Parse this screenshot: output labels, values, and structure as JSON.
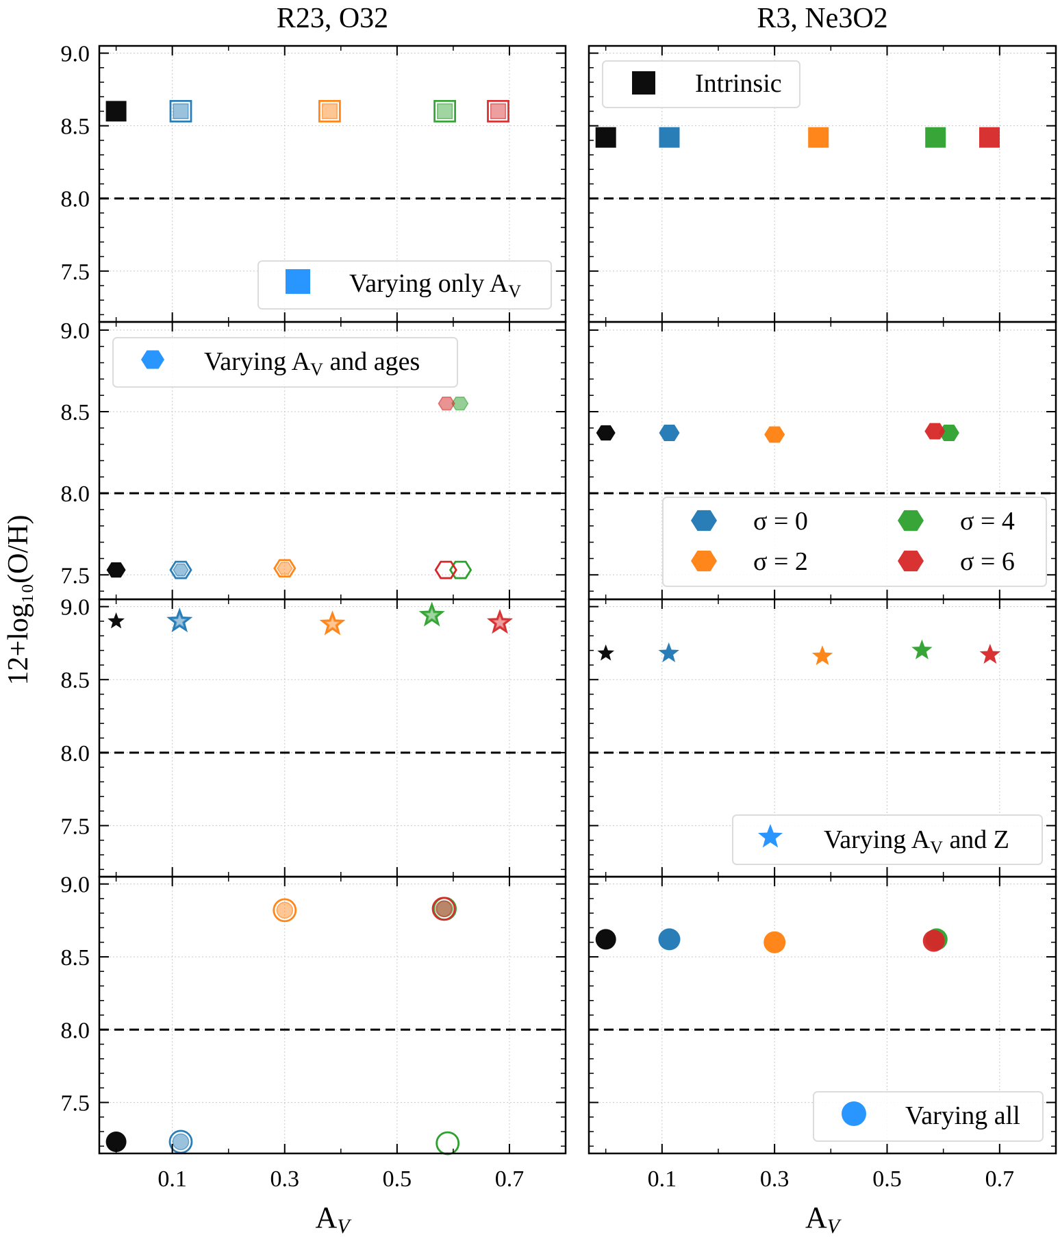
{
  "chart_data": {
    "type": "scatter",
    "column_titles": [
      "R23, O32",
      "R3, Ne3O2"
    ],
    "ylabel": "12+log₁₀(O/H)",
    "xlabel": "A",
    "xlabel_sub": "V",
    "xlim": [
      -0.03,
      0.8
    ],
    "xticks": [
      0.1,
      0.3,
      0.5,
      0.7
    ],
    "xtick_labels": [
      "0.1",
      "0.3",
      "0.5",
      "0.7"
    ],
    "yticks": [
      7.5,
      8.0,
      8.5,
      9.0
    ],
    "ytick_labels": [
      "7.5",
      "8.0",
      "8.5",
      "9.0"
    ],
    "reference_line_y": 8.0,
    "colors": {
      "intrinsic": "#000000",
      "sigma_0": "#1f77b4",
      "sigma_2": "#ff7f0e",
      "sigma_4": "#2ca02c",
      "sigma_6": "#d62728",
      "legend_marker": "#1e90ff"
    },
    "rows": [
      {
        "marker": "square",
        "ylim": [
          7.15,
          9.05
        ],
        "legend": "Varying only A",
        "legend_sub": "V",
        "left_points": [
          {
            "series": "intrinsic",
            "x": 0.0,
            "y": 8.6,
            "style": "solid"
          },
          {
            "series": "sigma_0",
            "x": 0.115,
            "y": 8.6,
            "style": "double"
          },
          {
            "series": "sigma_2",
            "x": 0.38,
            "y": 8.6,
            "style": "double"
          },
          {
            "series": "sigma_4",
            "x": 0.585,
            "y": 8.6,
            "style": "double"
          },
          {
            "series": "sigma_6",
            "x": 0.68,
            "y": 8.6,
            "style": "double"
          }
        ],
        "right_points": [
          {
            "series": "intrinsic",
            "x": 0.0,
            "y": 8.42,
            "style": "solid"
          },
          {
            "series": "sigma_0",
            "x": 0.113,
            "y": 8.42,
            "style": "solid"
          },
          {
            "series": "sigma_2",
            "x": 0.378,
            "y": 8.42,
            "style": "solid"
          },
          {
            "series": "sigma_4",
            "x": 0.586,
            "y": 8.42,
            "style": "solid"
          },
          {
            "series": "sigma_6",
            "x": 0.682,
            "y": 8.42,
            "style": "solid"
          }
        ]
      },
      {
        "marker": "hexagon",
        "ylim": [
          7.35,
          9.05
        ],
        "legend": "Varying A",
        "legend_sub": "V",
        "legend_tail": " and ages",
        "left_points": [
          {
            "series": "intrinsic",
            "x": 0.0,
            "y": 7.53,
            "style": "solid"
          },
          {
            "series": "sigma_0",
            "x": 0.115,
            "y": 7.53,
            "style": "double"
          },
          {
            "series": "sigma_2",
            "x": 0.3,
            "y": 7.54,
            "style": "double"
          },
          {
            "series": "sigma_4",
            "x": 0.613,
            "y": 7.53,
            "style": "open"
          },
          {
            "series": "sigma_6",
            "x": 0.587,
            "y": 7.53,
            "style": "open"
          },
          {
            "series": "sigma_4",
            "x": 0.612,
            "y": 8.55,
            "style": "faded"
          },
          {
            "series": "sigma_6",
            "x": 0.588,
            "y": 8.55,
            "style": "faded"
          }
        ],
        "right_points": [
          {
            "series": "intrinsic",
            "x": 0.0,
            "y": 8.37,
            "style": "solid"
          },
          {
            "series": "sigma_0",
            "x": 0.113,
            "y": 8.37,
            "style": "solid"
          },
          {
            "series": "sigma_2",
            "x": 0.3,
            "y": 8.36,
            "style": "solid"
          },
          {
            "series": "sigma_4",
            "x": 0.61,
            "y": 8.37,
            "style": "solid"
          },
          {
            "series": "sigma_6",
            "x": 0.585,
            "y": 8.38,
            "style": "solid"
          }
        ]
      },
      {
        "marker": "star",
        "ylim": [
          7.15,
          9.05
        ],
        "legend": "Varying A",
        "legend_sub": "V",
        "legend_tail": " and Z",
        "left_points": [
          {
            "series": "intrinsic",
            "x": 0.0,
            "y": 8.9,
            "style": "solid"
          },
          {
            "series": "sigma_0",
            "x": 0.113,
            "y": 8.9,
            "style": "double"
          },
          {
            "series": "sigma_2",
            "x": 0.385,
            "y": 8.88,
            "style": "double"
          },
          {
            "series": "sigma_4",
            "x": 0.562,
            "y": 8.94,
            "style": "double"
          },
          {
            "series": "sigma_6",
            "x": 0.683,
            "y": 8.89,
            "style": "double"
          }
        ],
        "right_points": [
          {
            "series": "intrinsic",
            "x": 0.0,
            "y": 8.68,
            "style": "solid"
          },
          {
            "series": "sigma_0",
            "x": 0.112,
            "y": 8.68,
            "style": "solid"
          },
          {
            "series": "sigma_2",
            "x": 0.385,
            "y": 8.66,
            "style": "solid"
          },
          {
            "series": "sigma_4",
            "x": 0.562,
            "y": 8.7,
            "style": "solid"
          },
          {
            "series": "sigma_6",
            "x": 0.683,
            "y": 8.67,
            "style": "solid"
          }
        ]
      },
      {
        "marker": "circle",
        "ylim": [
          7.15,
          9.05
        ],
        "legend": "Varying all",
        "left_points": [
          {
            "series": "intrinsic",
            "x": 0.0,
            "y": 7.23,
            "style": "solid"
          },
          {
            "series": "sigma_0",
            "x": 0.115,
            "y": 7.23,
            "style": "double"
          },
          {
            "series": "sigma_2",
            "x": 0.3,
            "y": 8.82,
            "style": "double"
          },
          {
            "series": "sigma_4",
            "x": 0.585,
            "y": 8.83,
            "style": "double"
          },
          {
            "series": "sigma_6",
            "x": 0.583,
            "y": 8.83,
            "style": "double"
          },
          {
            "series": "sigma_4",
            "x": 0.59,
            "y": 7.22,
            "style": "open"
          }
        ],
        "right_points": [
          {
            "series": "intrinsic",
            "x": 0.0,
            "y": 8.62,
            "style": "solid"
          },
          {
            "series": "sigma_0",
            "x": 0.113,
            "y": 8.62,
            "style": "solid"
          },
          {
            "series": "sigma_2",
            "x": 0.3,
            "y": 8.6,
            "style": "solid"
          },
          {
            "series": "sigma_4",
            "x": 0.588,
            "y": 8.62,
            "style": "solid"
          },
          {
            "series": "sigma_6",
            "x": 0.583,
            "y": 8.61,
            "style": "solid"
          }
        ]
      }
    ],
    "intrinsic_legend": "Intrinsic",
    "sigma_legend": [
      {
        "series": "sigma_0",
        "label": "σ = 0"
      },
      {
        "series": "sigma_4",
        "label": "σ = 4"
      },
      {
        "series": "sigma_2",
        "label": "σ = 2"
      },
      {
        "series": "sigma_6",
        "label": "σ = 6"
      }
    ]
  }
}
